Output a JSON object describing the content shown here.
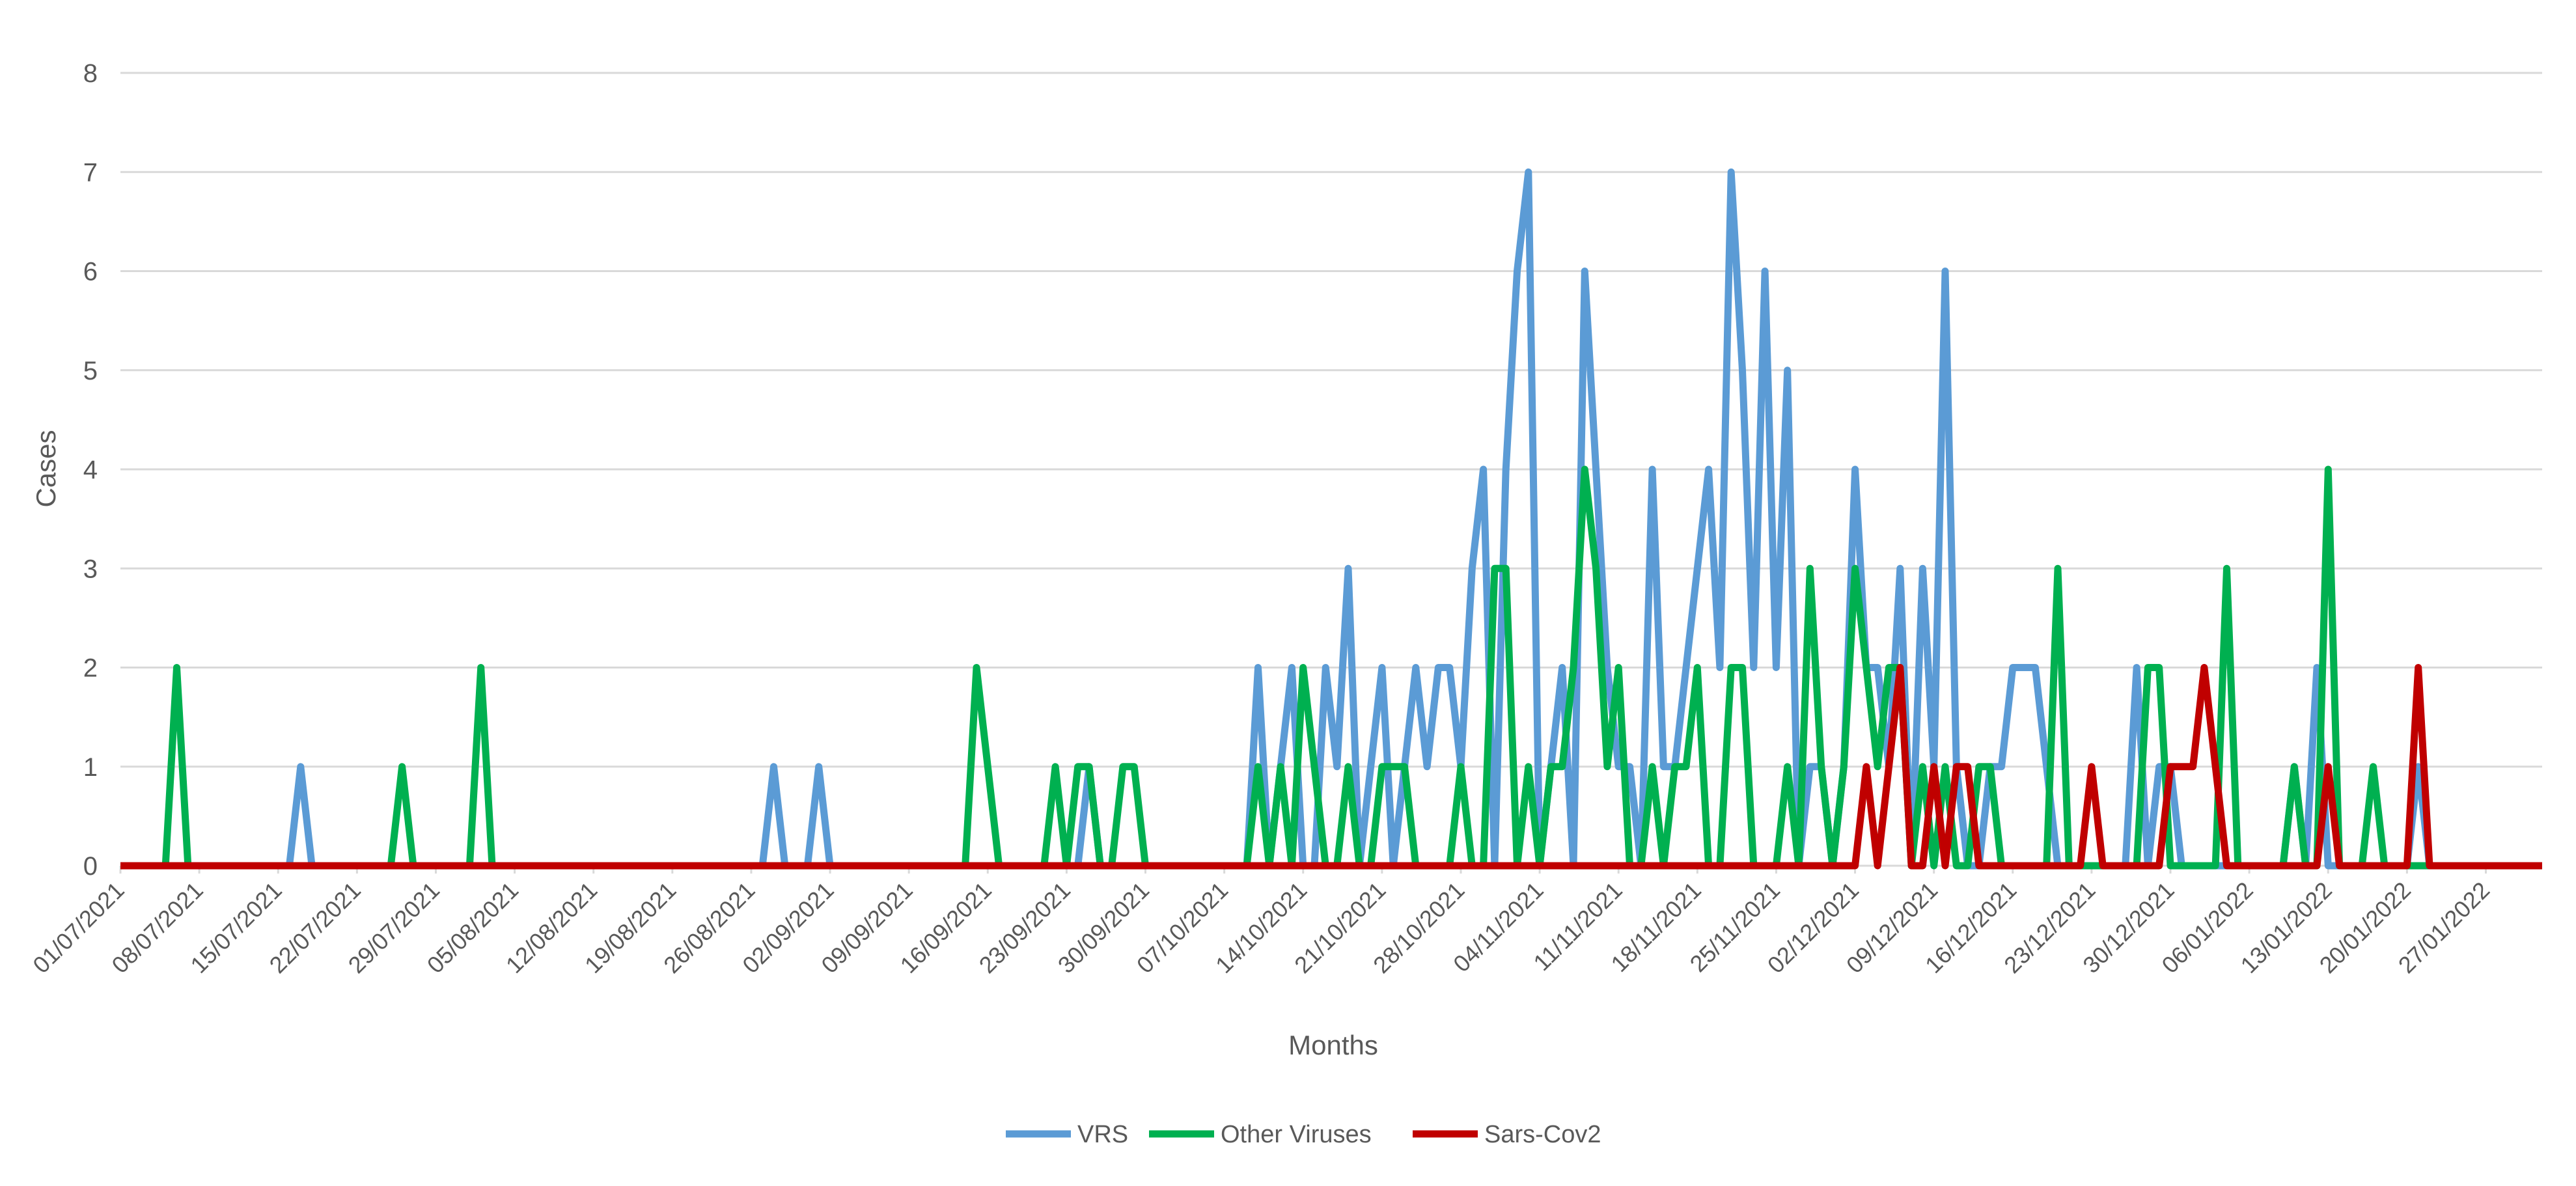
{
  "chart_data": {
    "type": "line",
    "title": "",
    "xlabel": "Months",
    "ylabel": "Cases",
    "ylim": [
      0,
      8
    ],
    "yticks": [
      0,
      1,
      2,
      3,
      4,
      5,
      6,
      7,
      8
    ],
    "xlim": [
      "2021-07-01",
      "2022-02-01"
    ],
    "x_tick_labels": [
      "01/07/2021",
      "08/07/2021",
      "15/07/2021",
      "22/07/2021",
      "29/07/2021",
      "05/08/2021",
      "12/08/2021",
      "19/08/2021",
      "26/08/2021",
      "02/09/2021",
      "09/09/2021",
      "16/09/2021",
      "23/09/2021",
      "30/09/2021",
      "07/10/2021",
      "14/10/2021",
      "21/10/2021",
      "28/10/2021",
      "04/11/2021",
      "11/11/2021",
      "18/11/2021",
      "25/11/2021",
      "02/12/2021",
      "09/12/2021",
      "16/12/2021",
      "23/12/2021",
      "30/12/2021",
      "06/01/2022",
      "13/01/2022",
      "20/01/2022",
      "27/01/2022"
    ],
    "grid": true,
    "legend_position": "bottom",
    "series": [
      {
        "name": "VRS",
        "color": "#5b9bd5",
        "points": [
          [
            "2021-07-01",
            0
          ],
          [
            "2021-07-16",
            0
          ],
          [
            "2021-07-17",
            1
          ],
          [
            "2021-07-18",
            0
          ],
          [
            "2021-08-27",
            0
          ],
          [
            "2021-08-28",
            1
          ],
          [
            "2021-08-29",
            0
          ],
          [
            "2021-08-31",
            0
          ],
          [
            "2021-09-01",
            1
          ],
          [
            "2021-09-02",
            0
          ],
          [
            "2021-09-24",
            0
          ],
          [
            "2021-09-25",
            1
          ],
          [
            "2021-09-26",
            0
          ],
          [
            "2021-10-09",
            0
          ],
          [
            "2021-10-10",
            2
          ],
          [
            "2021-10-11",
            0
          ],
          [
            "2021-10-12",
            1
          ],
          [
            "2021-10-13",
            2
          ],
          [
            "2021-10-14",
            0
          ],
          [
            "2021-10-15",
            0
          ],
          [
            "2021-10-16",
            2
          ],
          [
            "2021-10-17",
            1
          ],
          [
            "2021-10-18",
            3
          ],
          [
            "2021-10-19",
            0
          ],
          [
            "2021-10-21",
            2
          ],
          [
            "2021-10-22",
            0
          ],
          [
            "2021-10-23",
            1
          ],
          [
            "2021-10-24",
            2
          ],
          [
            "2021-10-25",
            1
          ],
          [
            "2021-10-26",
            2
          ],
          [
            "2021-10-27",
            2
          ],
          [
            "2021-10-28",
            1
          ],
          [
            "2021-10-29",
            3
          ],
          [
            "2021-10-30",
            4
          ],
          [
            "2021-10-31",
            0
          ],
          [
            "2021-11-01",
            4
          ],
          [
            "2021-11-02",
            6
          ],
          [
            "2021-11-03",
            7
          ],
          [
            "2021-11-04",
            0
          ],
          [
            "2021-11-05",
            1
          ],
          [
            "2021-11-06",
            2
          ],
          [
            "2021-11-07",
            0
          ],
          [
            "2021-11-08",
            6
          ],
          [
            "2021-11-09",
            4
          ],
          [
            "2021-11-10",
            2
          ],
          [
            "2021-11-11",
            1
          ],
          [
            "2021-11-12",
            1
          ],
          [
            "2021-11-13",
            0
          ],
          [
            "2021-11-14",
            4
          ],
          [
            "2021-11-15",
            1
          ],
          [
            "2021-11-16",
            1
          ],
          [
            "2021-11-17",
            2
          ],
          [
            "2021-11-18",
            3
          ],
          [
            "2021-11-19",
            4
          ],
          [
            "2021-11-20",
            2
          ],
          [
            "2021-11-21",
            7
          ],
          [
            "2021-11-22",
            5
          ],
          [
            "2021-11-23",
            2
          ],
          [
            "2021-11-24",
            6
          ],
          [
            "2021-11-25",
            2
          ],
          [
            "2021-11-26",
            5
          ],
          [
            "2021-11-27",
            0
          ],
          [
            "2021-11-28",
            1
          ],
          [
            "2021-11-29",
            1
          ],
          [
            "2021-11-30",
            0
          ],
          [
            "2021-12-01",
            1
          ],
          [
            "2021-12-02",
            4
          ],
          [
            "2021-12-03",
            2
          ],
          [
            "2021-12-04",
            2
          ],
          [
            "2021-12-05",
            1
          ],
          [
            "2021-12-06",
            3
          ],
          [
            "2021-12-07",
            0
          ],
          [
            "2021-12-08",
            3
          ],
          [
            "2021-12-09",
            1
          ],
          [
            "2021-12-10",
            6
          ],
          [
            "2021-12-11",
            1
          ],
          [
            "2021-12-12",
            0
          ],
          [
            "2021-12-13",
            0
          ],
          [
            "2021-12-14",
            1
          ],
          [
            "2021-12-15",
            1
          ],
          [
            "2021-12-16",
            2
          ],
          [
            "2021-12-17",
            2
          ],
          [
            "2021-12-18",
            2
          ],
          [
            "2021-12-19",
            1
          ],
          [
            "2021-12-20",
            0
          ],
          [
            "2021-12-26",
            0
          ],
          [
            "2021-12-27",
            2
          ],
          [
            "2021-12-28",
            0
          ],
          [
            "2021-12-29",
            1
          ],
          [
            "2021-12-30",
            1
          ],
          [
            "2021-12-31",
            0
          ],
          [
            "2022-01-09",
            0
          ],
          [
            "2022-01-10",
            1
          ],
          [
            "2022-01-11",
            0
          ],
          [
            "2022-01-12",
            2
          ],
          [
            "2022-01-13",
            0
          ],
          [
            "2022-01-20",
            0
          ],
          [
            "2022-01-21",
            1
          ],
          [
            "2022-01-22",
            0
          ],
          [
            "2022-02-01",
            0
          ]
        ]
      },
      {
        "name": "Other Viruses",
        "color": "#00b050",
        "points": [
          [
            "2021-07-01",
            0
          ],
          [
            "2021-07-05",
            0
          ],
          [
            "2021-07-06",
            2
          ],
          [
            "2021-07-07",
            0
          ],
          [
            "2021-07-25",
            0
          ],
          [
            "2021-07-26",
            1
          ],
          [
            "2021-07-27",
            0
          ],
          [
            "2021-08-01",
            0
          ],
          [
            "2021-08-02",
            2
          ],
          [
            "2021-08-03",
            0
          ],
          [
            "2021-09-14",
            0
          ],
          [
            "2021-09-15",
            2
          ],
          [
            "2021-09-16",
            1
          ],
          [
            "2021-09-17",
            0
          ],
          [
            "2021-09-21",
            0
          ],
          [
            "2021-09-22",
            1
          ],
          [
            "2021-09-23",
            0
          ],
          [
            "2021-09-24",
            1
          ],
          [
            "2021-09-25",
            1
          ],
          [
            "2021-09-26",
            0
          ],
          [
            "2021-09-27",
            0
          ],
          [
            "2021-09-28",
            1
          ],
          [
            "2021-09-29",
            1
          ],
          [
            "2021-09-30",
            0
          ],
          [
            "2021-10-09",
            0
          ],
          [
            "2021-10-10",
            1
          ],
          [
            "2021-10-11",
            0
          ],
          [
            "2021-10-12",
            1
          ],
          [
            "2021-10-13",
            0
          ],
          [
            "2021-10-14",
            2
          ],
          [
            "2021-10-15",
            1
          ],
          [
            "2021-10-16",
            0
          ],
          [
            "2021-10-17",
            0
          ],
          [
            "2021-10-18",
            1
          ],
          [
            "2021-10-19",
            0
          ],
          [
            "2021-10-20",
            0
          ],
          [
            "2021-10-21",
            1
          ],
          [
            "2021-10-22",
            1
          ],
          [
            "2021-10-23",
            1
          ],
          [
            "2021-10-24",
            0
          ],
          [
            "2021-10-27",
            0
          ],
          [
            "2021-10-28",
            1
          ],
          [
            "2021-10-29",
            0
          ],
          [
            "2021-10-30",
            0
          ],
          [
            "2021-10-31",
            3
          ],
          [
            "2021-11-01",
            3
          ],
          [
            "2021-11-02",
            0
          ],
          [
            "2021-11-03",
            1
          ],
          [
            "2021-11-04",
            0
          ],
          [
            "2021-11-05",
            1
          ],
          [
            "2021-11-06",
            1
          ],
          [
            "2021-11-07",
            2
          ],
          [
            "2021-11-08",
            4
          ],
          [
            "2021-11-09",
            3
          ],
          [
            "2021-11-10",
            1
          ],
          [
            "2021-11-11",
            2
          ],
          [
            "2021-11-12",
            0
          ],
          [
            "2021-11-13",
            0
          ],
          [
            "2021-11-14",
            1
          ],
          [
            "2021-11-15",
            0
          ],
          [
            "2021-11-16",
            1
          ],
          [
            "2021-11-17",
            1
          ],
          [
            "2021-11-18",
            2
          ],
          [
            "2021-11-19",
            0
          ],
          [
            "2021-11-20",
            0
          ],
          [
            "2021-11-21",
            2
          ],
          [
            "2021-11-22",
            2
          ],
          [
            "2021-11-23",
            0
          ],
          [
            "2021-11-25",
            0
          ],
          [
            "2021-11-26",
            1
          ],
          [
            "2021-11-27",
            0
          ],
          [
            "2021-11-28",
            3
          ],
          [
            "2021-11-29",
            1
          ],
          [
            "2021-11-30",
            0
          ],
          [
            "2021-12-01",
            1
          ],
          [
            "2021-12-02",
            3
          ],
          [
            "2021-12-03",
            2
          ],
          [
            "2021-12-04",
            1
          ],
          [
            "2021-12-05",
            2
          ],
          [
            "2021-12-06",
            2
          ],
          [
            "2021-12-07",
            0
          ],
          [
            "2021-12-08",
            1
          ],
          [
            "2021-12-09",
            0
          ],
          [
            "2021-12-10",
            1
          ],
          [
            "2021-12-11",
            0
          ],
          [
            "2021-12-12",
            0
          ],
          [
            "2021-12-13",
            1
          ],
          [
            "2021-12-14",
            1
          ],
          [
            "2021-12-15",
            0
          ],
          [
            "2021-12-19",
            0
          ],
          [
            "2021-12-20",
            3
          ],
          [
            "2021-12-21",
            0
          ],
          [
            "2021-12-26",
            0
          ],
          [
            "2021-12-27",
            0
          ],
          [
            "2021-12-28",
            2
          ],
          [
            "2021-12-29",
            2
          ],
          [
            "2021-12-30",
            0
          ],
          [
            "2022-01-03",
            0
          ],
          [
            "2022-01-04",
            3
          ],
          [
            "2022-01-05",
            0
          ],
          [
            "2022-01-09",
            0
          ],
          [
            "2022-01-10",
            1
          ],
          [
            "2022-01-11",
            0
          ],
          [
            "2022-01-12",
            0
          ],
          [
            "2022-01-13",
            4
          ],
          [
            "2022-01-14",
            0
          ],
          [
            "2022-01-16",
            0
          ],
          [
            "2022-01-17",
            1
          ],
          [
            "2022-01-18",
            0
          ],
          [
            "2022-02-01",
            0
          ]
        ]
      },
      {
        "name": "Sars-Cov2",
        "color": "#c00000",
        "points": [
          [
            "2021-07-01",
            0
          ],
          [
            "2021-12-02",
            0
          ],
          [
            "2021-12-03",
            1
          ],
          [
            "2021-12-04",
            0
          ],
          [
            "2021-12-05",
            1
          ],
          [
            "2021-12-06",
            2
          ],
          [
            "2021-12-07",
            0
          ],
          [
            "2021-12-08",
            0
          ],
          [
            "2021-12-09",
            1
          ],
          [
            "2021-12-10",
            0
          ],
          [
            "2021-12-11",
            1
          ],
          [
            "2021-12-12",
            1
          ],
          [
            "2021-12-13",
            0
          ],
          [
            "2021-12-22",
            0
          ],
          [
            "2021-12-23",
            1
          ],
          [
            "2021-12-24",
            0
          ],
          [
            "2021-12-29",
            0
          ],
          [
            "2021-12-30",
            1
          ],
          [
            "2021-12-31",
            1
          ],
          [
            "2022-01-01",
            1
          ],
          [
            "2022-01-02",
            2
          ],
          [
            "2022-01-03",
            1
          ],
          [
            "2022-01-04",
            0
          ],
          [
            "2022-01-12",
            0
          ],
          [
            "2022-01-13",
            1
          ],
          [
            "2022-01-14",
            0
          ],
          [
            "2022-01-20",
            0
          ],
          [
            "2022-01-21",
            2
          ],
          [
            "2022-01-22",
            0
          ],
          [
            "2022-02-01",
            0
          ]
        ]
      }
    ]
  }
}
